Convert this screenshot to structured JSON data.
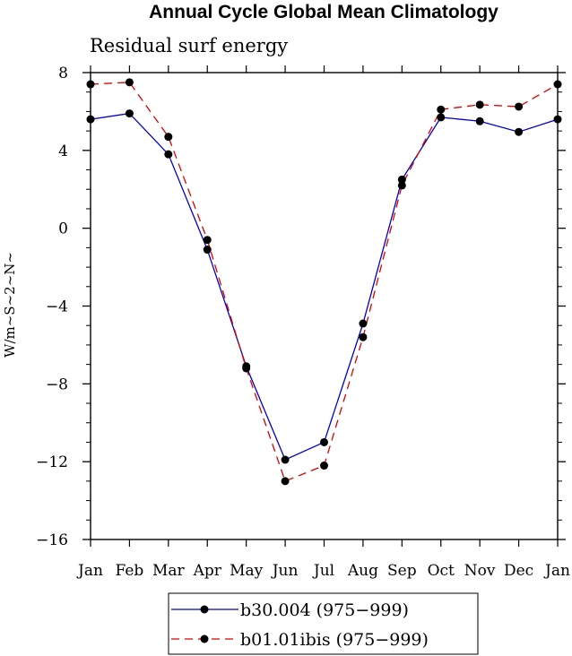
{
  "chart_data": {
    "type": "line",
    "title": "Annual Cycle Global Mean Climatology",
    "subtitle": "Residual surf energy",
    "xlabel": "",
    "ylabel": "W/m~S~2~N~",
    "categories": [
      "Jan",
      "Feb",
      "Mar",
      "Apr",
      "May",
      "Jun",
      "Jul",
      "Aug",
      "Sep",
      "Oct",
      "Nov",
      "Dec",
      "Jan"
    ],
    "ylim": [
      -16,
      8
    ],
    "yticks": [
      8,
      4,
      0,
      -4,
      -8,
      -12,
      -16
    ],
    "ytick_labels": [
      "8",
      "4",
      "0",
      "−4",
      "−8",
      "−12",
      "−16"
    ],
    "series": [
      {
        "name": "b30.004 (975-999)",
        "label": "b30.004 (975−999)",
        "color": "#0000cc",
        "dash": "solid",
        "values": [
          5.6,
          5.9,
          3.8,
          -1.1,
          -7.1,
          -11.9,
          -11.0,
          -4.9,
          2.5,
          5.7,
          5.5,
          4.95,
          5.6
        ]
      },
      {
        "name": "b01.01ibis (975-999)",
        "label": "b01.01ibis (975−999)",
        "color": "#dd0000",
        "dash": "dashed",
        "values": [
          7.4,
          7.5,
          4.7,
          -0.6,
          -7.2,
          -13.0,
          -12.2,
          -5.6,
          2.2,
          6.1,
          6.35,
          6.25,
          7.4
        ]
      }
    ],
    "legend_position": "bottom",
    "grid": false
  }
}
